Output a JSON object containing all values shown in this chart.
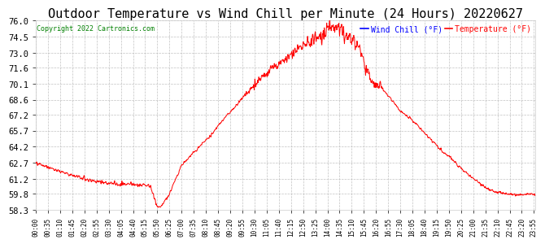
{
  "title": "Outdoor Temperature vs Wind Chill per Minute (24 Hours) 20220627",
  "copyright": "Copyright 2022 Cartronics.com",
  "legend_items": [
    "Wind Chill (°F)",
    "Temperature (°F)"
  ],
  "legend_colors": [
    "blue",
    "red"
  ],
  "ylim": [
    58.3,
    76.0
  ],
  "yticks": [
    58.3,
    59.8,
    61.2,
    62.7,
    64.2,
    65.7,
    67.2,
    68.6,
    70.1,
    71.6,
    73.0,
    74.5,
    76.0
  ],
  "background_color": "#ffffff",
  "grid_color": "#bbbbbb",
  "line_color": "red",
  "title_fontsize": 11,
  "xtick_step": 35,
  "n_minutes": 1440
}
